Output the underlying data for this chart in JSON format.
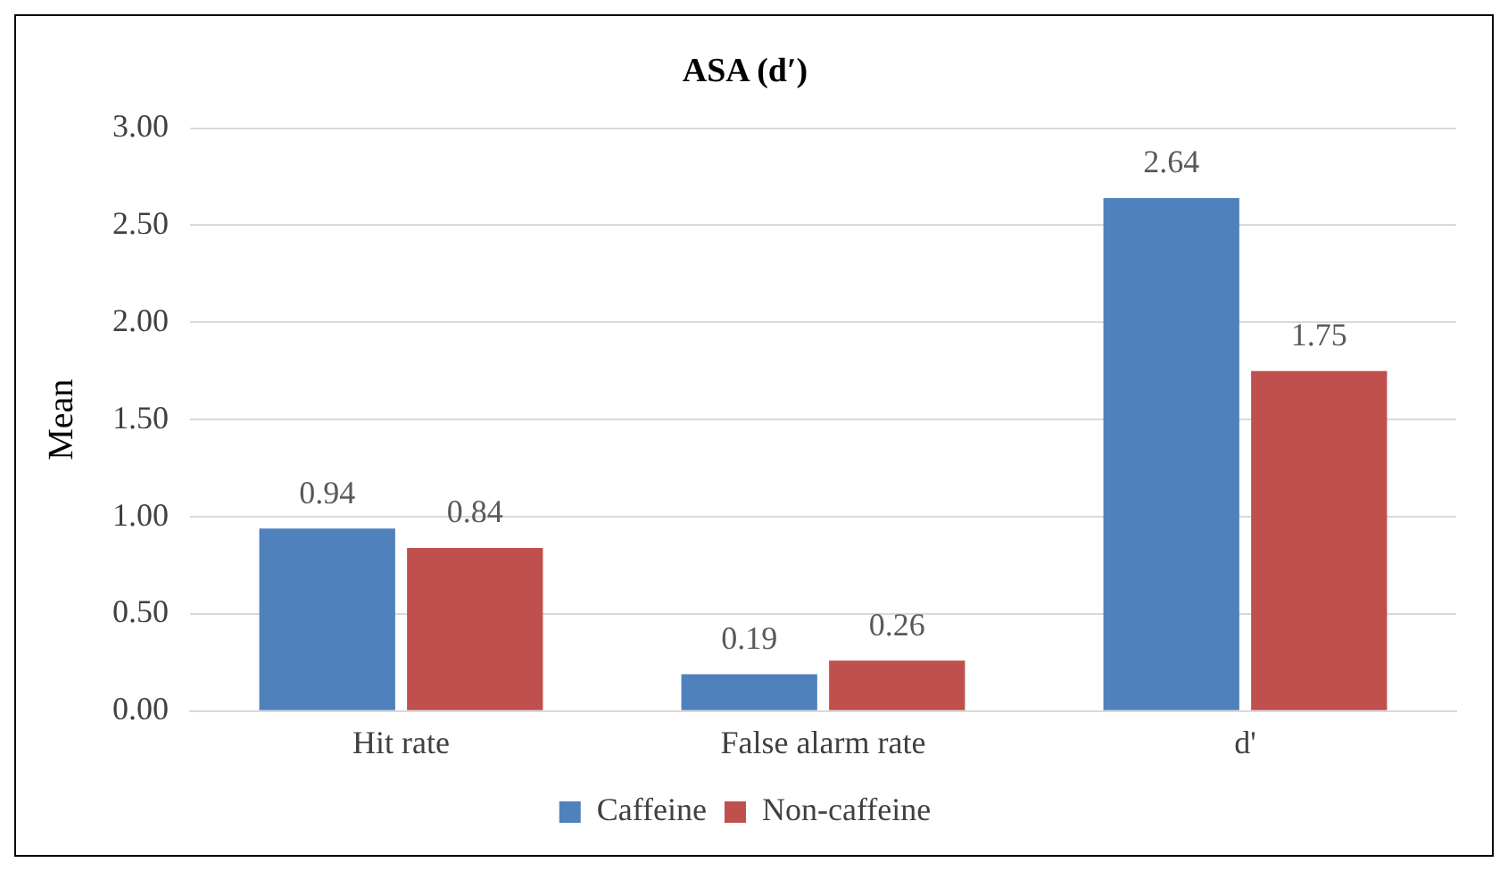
{
  "chart_data": {
    "type": "bar",
    "title": "ASA (d′)",
    "ylabel": "Mean",
    "categories": [
      "Hit rate",
      "False alarm rate",
      "d'"
    ],
    "series": [
      {
        "name": "Caffeine",
        "color": "#4f81bd",
        "values": [
          0.94,
          0.19,
          2.64
        ]
      },
      {
        "name": "Non-caffeine",
        "color": "#c0504d",
        "values": [
          0.84,
          0.26,
          1.75
        ]
      }
    ],
    "ylim": [
      0,
      3
    ],
    "yticks": [
      {
        "value": 0,
        "label": "0.00"
      },
      {
        "value": 0.5,
        "label": "0.50"
      },
      {
        "value": 1,
        "label": "1.00"
      },
      {
        "value": 1.5,
        "label": "1.50"
      },
      {
        "value": 2,
        "label": "2.00"
      },
      {
        "value": 2.5,
        "label": "2.50"
      },
      {
        "value": 3,
        "label": "3.00"
      }
    ],
    "grid": "y",
    "legend": "bottom",
    "data_labels": true
  }
}
